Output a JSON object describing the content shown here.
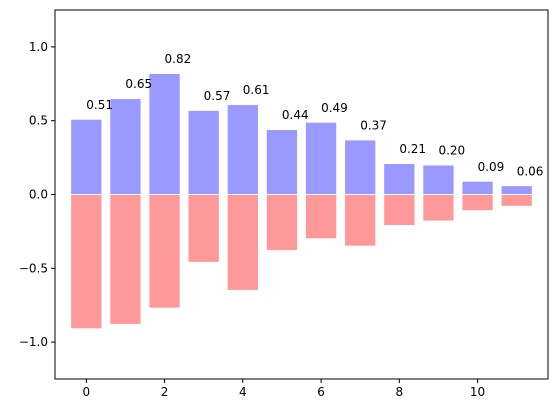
{
  "chart_data": {
    "type": "bar",
    "title": "",
    "xlabel": "",
    "ylabel": "",
    "xlim": [
      -0.8,
      11.8
    ],
    "ylim": [
      -1.25,
      1.25
    ],
    "x": [
      0,
      1,
      2,
      3,
      4,
      5,
      6,
      7,
      8,
      9,
      10,
      11
    ],
    "x_ticks": [
      0,
      2,
      4,
      6,
      8,
      10
    ],
    "y_ticks": [
      -1.0,
      -0.5,
      0.0,
      0.5,
      1.0
    ],
    "x_tick_labels": [
      "0",
      "2",
      "4",
      "6",
      "8",
      "10"
    ],
    "y_tick_labels": [
      "−1.0",
      "−0.5",
      "0.0",
      "0.5",
      "1.0"
    ],
    "grid": false,
    "legend": false,
    "series": [
      {
        "color": "#9999ff",
        "values": [
          0.51,
          0.65,
          0.82,
          0.57,
          0.61,
          0.44,
          0.49,
          0.37,
          0.21,
          0.2,
          0.09,
          0.06
        ],
        "data_labels": [
          "0.51",
          "0.65",
          "0.82",
          "0.57",
          "0.61",
          "0.44",
          "0.49",
          "0.37",
          "0.21",
          "0.20",
          "0.09",
          "0.06"
        ]
      },
      {
        "color": "#ff9999",
        "values": [
          -0.91,
          -0.88,
          -0.77,
          -0.46,
          -0.65,
          -0.38,
          -0.3,
          -0.35,
          -0.21,
          -0.18,
          -0.11,
          -0.08
        ]
      }
    ]
  }
}
